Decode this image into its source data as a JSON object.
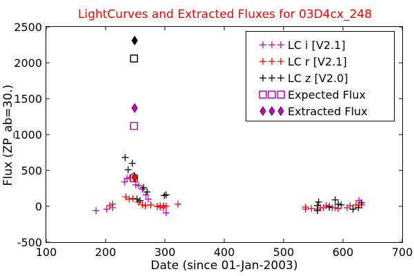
{
  "chart_data": {
    "type": "scatter",
    "title": "LightCurves and Extracted Fluxes for 03D4cx_248",
    "xlabel": "Date (since 01-Jan-2003)",
    "ylabel": "Flux (ZP_ab=30.)",
    "xlim": [
      100,
      700
    ],
    "ylim": [
      -500,
      2500
    ],
    "x_ticks": [
      100,
      200,
      300,
      400,
      500,
      600,
      700
    ],
    "y_ticks": [
      -500,
      0,
      500,
      1000,
      1500,
      2000,
      2500
    ],
    "x_tick_labels": [
      "100",
      "200",
      "300",
      "400",
      "500",
      "600",
      "700"
    ],
    "y_tick_labels": [
      "-500",
      "0",
      "500",
      "1000",
      "1500",
      "2000",
      "2500"
    ],
    "grid": false,
    "legend_position": "top-right",
    "colors": {
      "title": "#ff0000",
      "i": "#bf00bf",
      "r": "#ff0000",
      "z": "#000000"
    },
    "series": [
      {
        "name": "LC i [V2.1]",
        "marker": "plus",
        "color": "#bf00bf",
        "points": [
          [
            184,
            -60
          ],
          [
            202,
            -40
          ],
          [
            212,
            -20
          ],
          [
            232,
            340
          ],
          [
            236,
            390
          ],
          [
            241,
            400
          ],
          [
            245,
            420
          ],
          [
            251,
            300
          ],
          [
            256,
            290
          ],
          [
            262,
            240
          ],
          [
            268,
            160
          ],
          [
            272,
            100
          ],
          [
            287,
            0
          ],
          [
            292,
            -10
          ],
          [
            298,
            10
          ],
          [
            302,
            -90
          ],
          [
            537,
            -40
          ],
          [
            557,
            -40
          ],
          [
            567,
            -20
          ],
          [
            577,
            0
          ],
          [
            587,
            -20
          ],
          [
            607,
            -20
          ],
          [
            617,
            -40
          ],
          [
            627,
            80
          ],
          [
            632,
            20
          ]
        ]
      },
      {
        "name": "LC r [V2.1]",
        "marker": "plus",
        "color": "#ff0000",
        "points": [
          [
            207,
            10
          ],
          [
            212,
            30
          ],
          [
            234,
            130
          ],
          [
            240,
            100
          ],
          [
            246,
            110
          ],
          [
            255,
            60
          ],
          [
            262,
            20
          ],
          [
            267,
            10
          ],
          [
            276,
            20
          ],
          [
            287,
            0
          ],
          [
            292,
            10
          ],
          [
            297,
            -20
          ],
          [
            302,
            0
          ],
          [
            322,
            30
          ],
          [
            537,
            -10
          ],
          [
            547,
            -30
          ],
          [
            562,
            -20
          ],
          [
            572,
            10
          ],
          [
            582,
            -20
          ],
          [
            592,
            -30
          ],
          [
            612,
            10
          ],
          [
            622,
            20
          ],
          [
            627,
            20
          ]
        ]
      },
      {
        "name": "LC z [V2.0]",
        "marker": "plus",
        "color": "#000000",
        "points": [
          [
            233,
            680
          ],
          [
            238,
            510
          ],
          [
            245,
            600
          ],
          [
            248,
            430
          ],
          [
            253,
            100
          ],
          [
            258,
            80
          ],
          [
            264,
            260
          ],
          [
            270,
            200
          ],
          [
            299,
            150
          ],
          [
            302,
            160
          ],
          [
            557,
            10
          ],
          [
            557,
            -60
          ],
          [
            559,
            60
          ],
          [
            577,
            -10
          ],
          [
            587,
            90
          ],
          [
            592,
            30
          ],
          [
            597,
            20
          ],
          [
            617,
            -40
          ],
          [
            626,
            -20
          ],
          [
            631,
            50
          ]
        ]
      },
      {
        "name": "Expected Flux",
        "marker": "square",
        "color": "#bf00bf",
        "points": [
          [
            248,
            2060,
            "#000000"
          ],
          [
            248,
            1120,
            "#bf00bf"
          ],
          [
            248,
            390,
            "#ff0000"
          ]
        ]
      },
      {
        "name": "Extracted Flux",
        "marker": "diamond",
        "color": "#bf00bf",
        "points": [
          [
            249,
            2310,
            "#000000"
          ],
          [
            249,
            1370,
            "#bf00bf"
          ],
          [
            249,
            400,
            "#ff0000"
          ]
        ]
      }
    ],
    "legend": [
      {
        "label": "LC i [V2.1]",
        "marker": "plus",
        "color": "#bf00bf"
      },
      {
        "label": "LC r [V2.1]",
        "marker": "plus",
        "color": "#ff0000"
      },
      {
        "label": "LC z [V2.0]",
        "marker": "plus",
        "color": "#000000"
      },
      {
        "label": "Expected Flux",
        "marker": "square",
        "color": "#bf00bf"
      },
      {
        "label": "Extracted Flux",
        "marker": "diamond",
        "color": "#bf00bf"
      }
    ]
  }
}
